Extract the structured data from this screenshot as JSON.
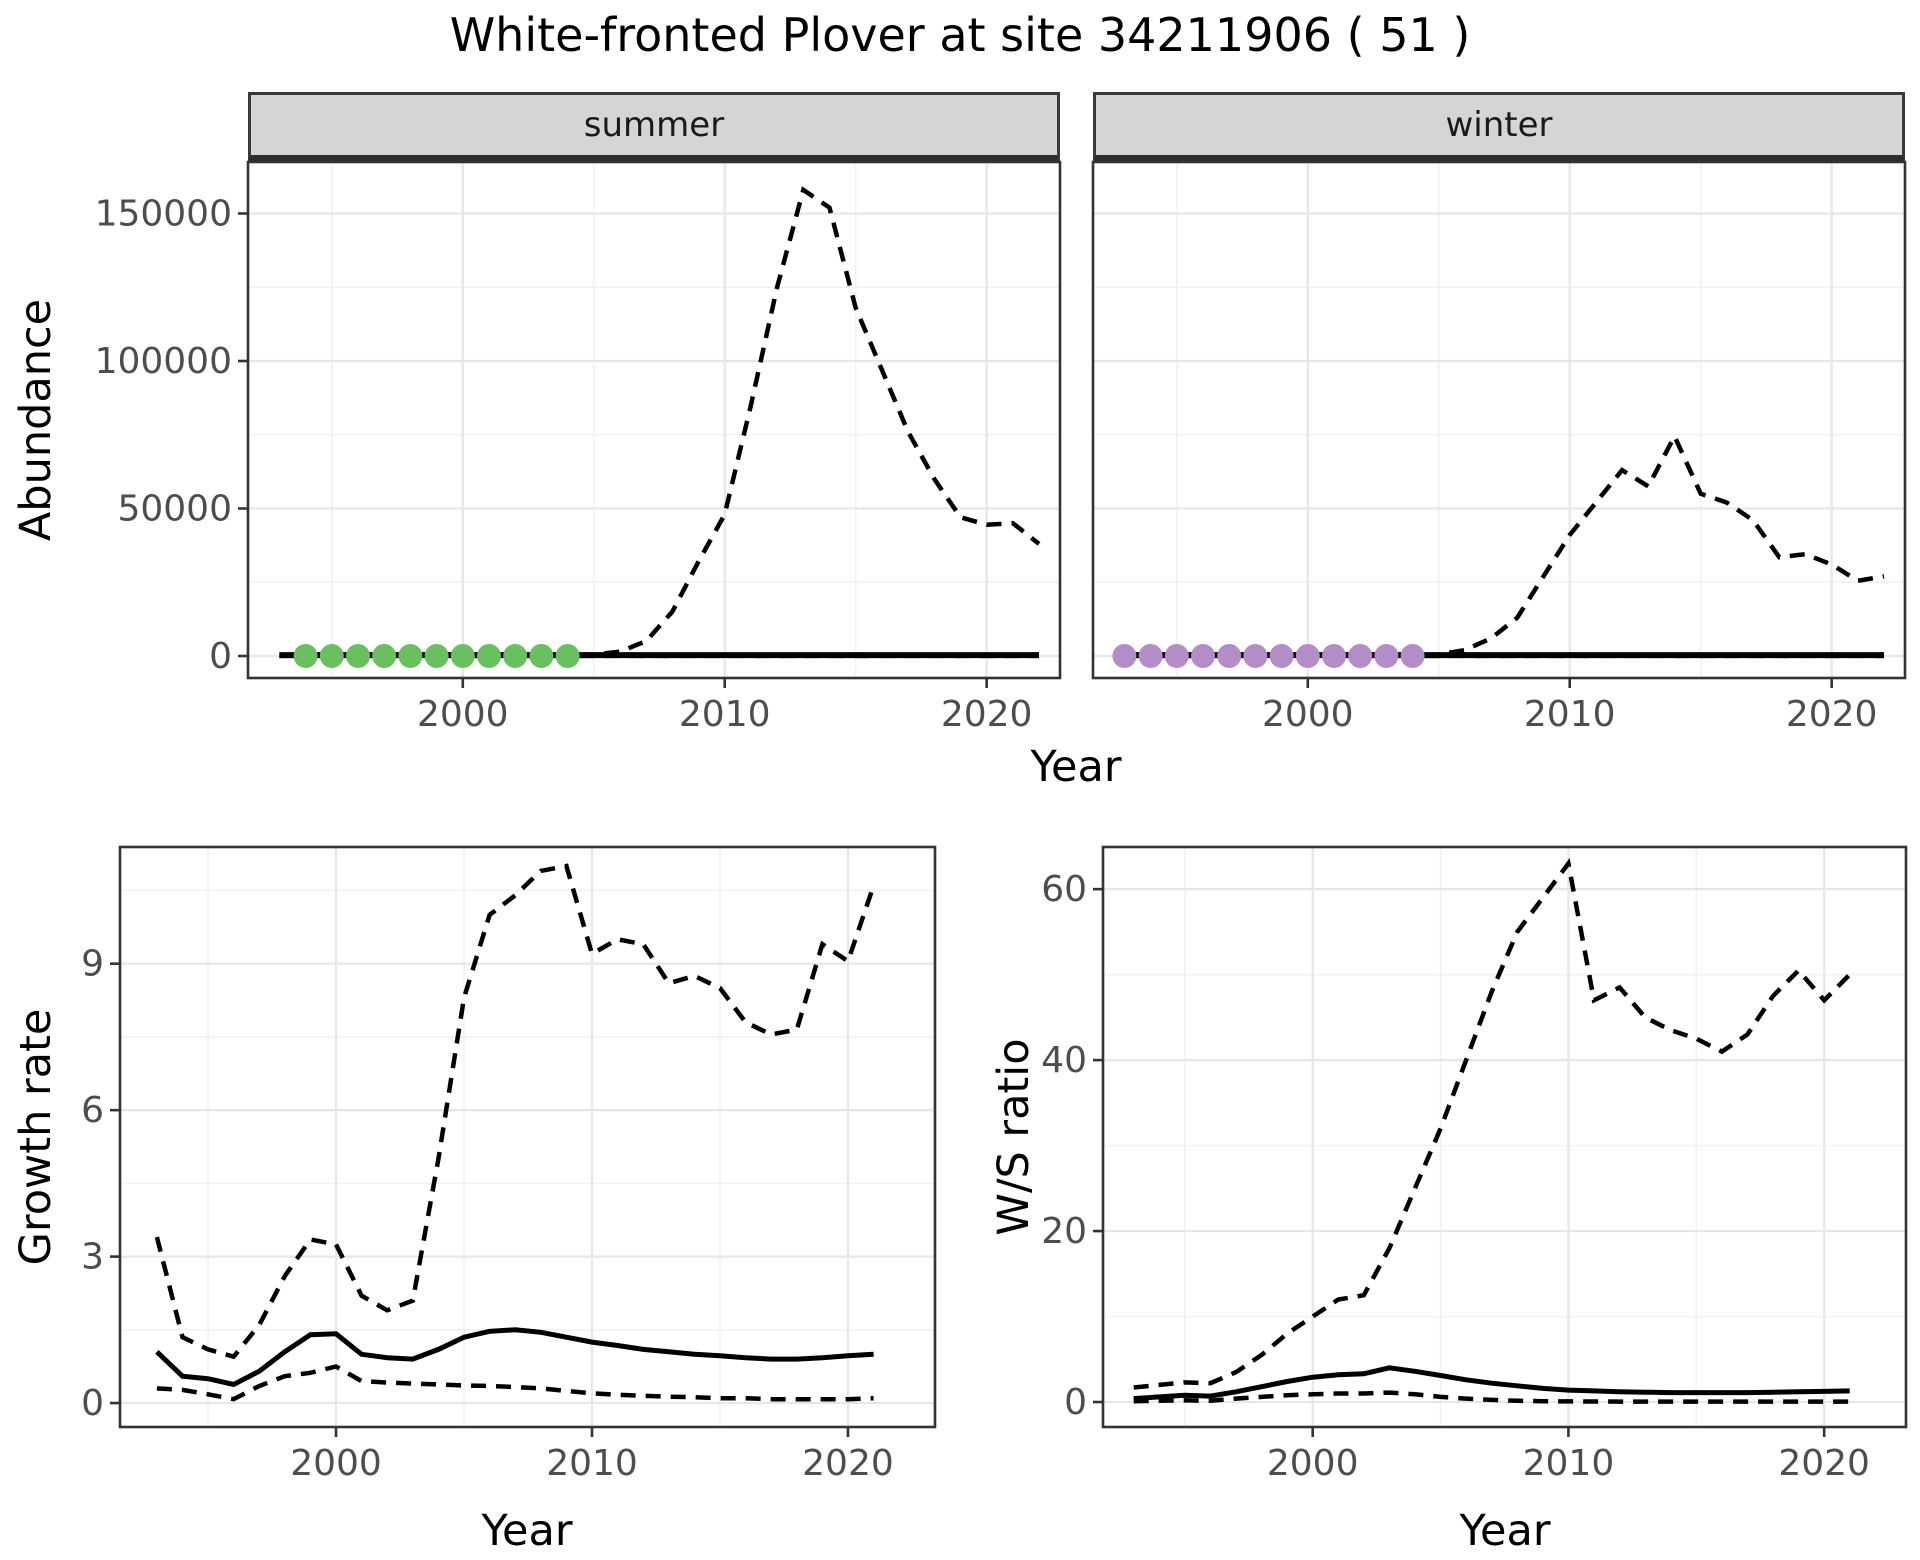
{
  "title": "White-fronted Plover at site 34211906 ( 51 )",
  "colors": {
    "line": "#000000",
    "summer_points": "#6abf61",
    "winter_points": "#b48cc8",
    "tick_text": "#4d4d4d",
    "strip_bg": "#d5d5d5",
    "grid_major": "#e6e6e6",
    "grid_minor": "#f1f1f1",
    "panel_border": "#333333"
  },
  "chart_data": [
    {
      "id": "abundance_summer",
      "type": "line",
      "title_strip": "summer",
      "xlabel": "Year",
      "ylabel": "Abundance",
      "x": [
        1993,
        1994,
        1995,
        1996,
        1997,
        1998,
        1999,
        2000,
        2001,
        2002,
        2003,
        2004,
        2005,
        2006,
        2007,
        2008,
        2009,
        2010,
        2011,
        2012,
        2013,
        2014,
        2015,
        2016,
        2017,
        2018,
        2019,
        2020,
        2021,
        2022
      ],
      "series": [
        {
          "name": "modelled_upper_ci",
          "style": "dashed",
          "values": [
            100,
            100,
            100,
            100,
            100,
            100,
            100,
            100,
            150,
            200,
            250,
            300,
            500,
            1500,
            5000,
            15000,
            32000,
            48000,
            85000,
            125000,
            158000,
            152000,
            118000,
            97000,
            76000,
            60000,
            47000,
            44500,
            45000,
            38000
          ]
        },
        {
          "name": "modelled_mean",
          "style": "solid",
          "values": [
            300,
            300,
            300,
            300,
            300,
            300,
            300,
            300,
            300,
            300,
            300,
            300,
            300,
            300,
            300,
            300,
            300,
            300,
            300,
            300,
            300,
            300,
            300,
            300,
            300,
            300,
            300,
            300,
            300,
            300
          ]
        },
        {
          "name": "modelled_lower_ci",
          "style": "dashed",
          "values": [
            50,
            50,
            50,
            50,
            50,
            50,
            50,
            50,
            50,
            50,
            50,
            50,
            50,
            50,
            50,
            50,
            50,
            50,
            50,
            50,
            50,
            50,
            50,
            50,
            50,
            50,
            50,
            50,
            50,
            50
          ]
        },
        {
          "name": "observed_counts",
          "style": "points",
          "color": "#6abf61",
          "x": [
            1994,
            1995,
            1996,
            1997,
            1998,
            1999,
            2000,
            2001,
            2002,
            2003,
            2004
          ],
          "values": [
            0,
            0,
            0,
            0,
            0,
            0,
            0,
            0,
            0,
            0,
            0
          ]
        }
      ],
      "xticks": [
        2000,
        2010,
        2020
      ],
      "xtick_labels": [
        "2000",
        "2010",
        "2020"
      ],
      "yticks": [
        0,
        50000,
        100000,
        150000
      ],
      "ytick_labels": [
        "0",
        "50000",
        "100000",
        "150000"
      ],
      "xlim": [
        1991.8,
        2022.8
      ],
      "ylim": [
        -7458,
        167458
      ],
      "grid": true,
      "legend": "none"
    },
    {
      "id": "abundance_winter",
      "type": "line",
      "title_strip": "winter",
      "xlabel": "Year",
      "ylabel": "Abundance",
      "x": [
        1993,
        1994,
        1995,
        1996,
        1997,
        1998,
        1999,
        2000,
        2001,
        2002,
        2003,
        2004,
        2005,
        2006,
        2007,
        2008,
        2009,
        2010,
        2011,
        2012,
        2013,
        2014,
        2015,
        2016,
        2017,
        2018,
        2019,
        2020,
        2021,
        2022
      ],
      "series": [
        {
          "name": "modelled_upper_ci",
          "style": "dashed",
          "values": [
            100,
            100,
            100,
            100,
            100,
            100,
            100,
            100,
            100,
            100,
            100,
            100,
            500,
            2000,
            6000,
            13000,
            27000,
            41000,
            52000,
            63000,
            57500,
            74500,
            55000,
            52000,
            46000,
            33500,
            34500,
            31000,
            25500,
            27000
          ]
        },
        {
          "name": "modelled_mean",
          "style": "solid",
          "values": [
            300,
            300,
            300,
            300,
            300,
            300,
            300,
            300,
            300,
            300,
            300,
            300,
            300,
            300,
            300,
            300,
            300,
            300,
            300,
            300,
            300,
            300,
            300,
            300,
            300,
            300,
            300,
            300,
            300,
            300
          ]
        },
        {
          "name": "modelled_lower_ci",
          "style": "dashed",
          "values": [
            50,
            50,
            50,
            50,
            50,
            50,
            50,
            50,
            50,
            50,
            50,
            50,
            50,
            50,
            50,
            50,
            50,
            50,
            50,
            50,
            50,
            50,
            50,
            50,
            50,
            50,
            50,
            50,
            50,
            50
          ]
        },
        {
          "name": "observed_counts",
          "style": "points",
          "color": "#b48cc8",
          "x": [
            1993,
            1994,
            1995,
            1996,
            1997,
            1998,
            1999,
            2000,
            2001,
            2002,
            2003,
            2004
          ],
          "values": [
            0,
            0,
            0,
            0,
            0,
            0,
            0,
            0,
            0,
            0,
            0,
            0
          ]
        }
      ],
      "xticks": [
        2000,
        2010,
        2020
      ],
      "xtick_labels": [
        "2000",
        "2010",
        "2020"
      ],
      "yticks": [
        0,
        50000,
        100000,
        150000
      ],
      "ytick_labels": [
        "0",
        "50000",
        "100000",
        "150000"
      ],
      "xlim": [
        1991.8,
        2022.8
      ],
      "ylim": [
        -7458,
        167458
      ],
      "grid": true,
      "legend": "none"
    },
    {
      "id": "growth_rate",
      "type": "line",
      "title_strip": "",
      "xlabel": "Year",
      "ylabel": "Growth rate",
      "x": [
        1993,
        1994,
        1995,
        1996,
        1997,
        1998,
        1999,
        2000,
        2001,
        2002,
        2003,
        2004,
        2005,
        2006,
        2007,
        2008,
        2009,
        2010,
        2011,
        2012,
        2013,
        2014,
        2015,
        2016,
        2017,
        2018,
        2019,
        2020,
        2021
      ],
      "series": [
        {
          "name": "upper_ci",
          "style": "dashed",
          "values": [
            3.4,
            1.35,
            1.1,
            0.95,
            1.6,
            2.6,
            3.35,
            3.25,
            2.2,
            1.9,
            2.1,
            5.0,
            8.3,
            10.0,
            10.4,
            10.9,
            11.0,
            9.2,
            9.5,
            9.4,
            8.6,
            8.75,
            8.5,
            7.8,
            7.55,
            7.65,
            9.4,
            9.05,
            10.6
          ]
        },
        {
          "name": "mean",
          "style": "solid",
          "values": [
            1.05,
            0.55,
            0.5,
            0.38,
            0.65,
            1.05,
            1.4,
            1.42,
            1.0,
            0.93,
            0.9,
            1.1,
            1.35,
            1.47,
            1.5,
            1.45,
            1.35,
            1.25,
            1.18,
            1.1,
            1.05,
            1.0,
            0.97,
            0.93,
            0.9,
            0.9,
            0.93,
            0.97,
            1.0
          ]
        },
        {
          "name": "lower_ci",
          "style": "dashed",
          "values": [
            0.3,
            0.27,
            0.18,
            0.08,
            0.35,
            0.55,
            0.62,
            0.75,
            0.45,
            0.42,
            0.4,
            0.38,
            0.36,
            0.35,
            0.33,
            0.3,
            0.25,
            0.2,
            0.17,
            0.15,
            0.13,
            0.12,
            0.1,
            0.1,
            0.08,
            0.08,
            0.08,
            0.08,
            0.1
          ]
        }
      ],
      "xticks": [
        2000,
        2010,
        2020
      ],
      "xtick_labels": [
        "2000",
        "2010",
        "2020"
      ],
      "yticks": [
        0,
        3,
        6,
        9
      ],
      "ytick_labels": [
        "0",
        "3",
        "6",
        "9"
      ],
      "xlim": [
        1991.56,
        2023.4
      ],
      "ylim": [
        -0.49,
        11.39
      ],
      "grid": true,
      "legend": "none"
    },
    {
      "id": "ws_ratio",
      "type": "line",
      "title_strip": "",
      "xlabel": "Year",
      "ylabel": "W/S ratio",
      "x": [
        1993,
        1994,
        1995,
        1996,
        1997,
        1998,
        1999,
        2000,
        2001,
        2002,
        2003,
        2004,
        2005,
        2006,
        2007,
        2008,
        2009,
        2010,
        2011,
        2012,
        2013,
        2014,
        2015,
        2016,
        2017,
        2018,
        2019,
        2020,
        2021
      ],
      "series": [
        {
          "name": "upper_ci",
          "style": "dashed",
          "values": [
            1.7,
            2.0,
            2.3,
            2.2,
            3.5,
            5.5,
            8.0,
            10.0,
            12.0,
            12.5,
            18,
            25,
            32,
            40,
            48,
            55,
            59,
            63,
            47,
            48.5,
            45,
            43.5,
            42.5,
            41,
            43,
            47.5,
            50.5,
            47,
            50
          ]
        },
        {
          "name": "mean",
          "style": "solid",
          "values": [
            0.4,
            0.6,
            0.8,
            0.7,
            1.2,
            1.8,
            2.4,
            2.9,
            3.2,
            3.3,
            4.0,
            3.6,
            3.1,
            2.6,
            2.2,
            1.9,
            1.6,
            1.4,
            1.3,
            1.2,
            1.15,
            1.1,
            1.1,
            1.1,
            1.1,
            1.15,
            1.2,
            1.25,
            1.3
          ]
        },
        {
          "name": "lower_ci",
          "style": "dashed",
          "values": [
            0.1,
            0.15,
            0.2,
            0.15,
            0.4,
            0.6,
            0.8,
            0.9,
            1.0,
            1.0,
            1.1,
            0.9,
            0.6,
            0.4,
            0.25,
            0.15,
            0.1,
            0.08,
            0.06,
            0.05,
            0.05,
            0.05,
            0.05,
            0.05,
            0.05,
            0.05,
            0.05,
            0.05,
            0.05
          ]
        }
      ],
      "xticks": [
        2000,
        2010,
        2020
      ],
      "xtick_labels": [
        "2000",
        "2010",
        "2020"
      ],
      "yticks": [
        0,
        20,
        40,
        60
      ],
      "ytick_labels": [
        "0",
        "20",
        "40",
        "60"
      ],
      "xlim": [
        1991.8,
        2023.2
      ],
      "ylim": [
        -2.92,
        64.93
      ],
      "grid": true,
      "legend": "none"
    }
  ]
}
